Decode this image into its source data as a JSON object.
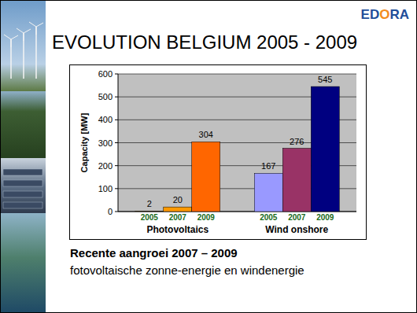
{
  "slide": {
    "logo": "EDORA",
    "title": "EVOLUTION BELGIUM 2005 - 2009",
    "caption_heading": "Recente aangroei 2007 – 2009",
    "caption_text": "fotovoltaische zonne-energie en windenergie"
  },
  "chart_data": {
    "type": "bar",
    "y_label": "Capacity [MW]",
    "categories": [
      "2005",
      "2007",
      "2009"
    ],
    "series": [
      {
        "name": "Photovoltaics",
        "colors": [
          "#ffcc66",
          "#ff9900",
          "#ff6600"
        ],
        "values": [
          2,
          20,
          304
        ]
      },
      {
        "name": "Wind onshore",
        "colors": [
          "#9999ff",
          "#993366",
          "#000080"
        ],
        "values": [
          167,
          276,
          545
        ]
      }
    ],
    "ylim": [
      0,
      600
    ],
    "yticks": [
      0,
      100,
      200,
      300,
      400,
      500,
      600
    ],
    "grid": true,
    "data_labels": true
  }
}
